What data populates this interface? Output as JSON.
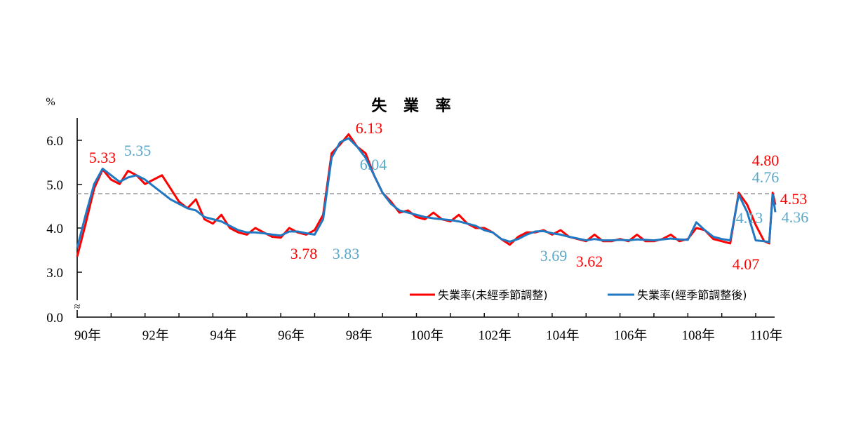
{
  "chart_data": {
    "type": "line",
    "title": "失 業 率",
    "ylabel": "%",
    "xlabel": "",
    "ylim": [
      0.0,
      6.5
    ],
    "y_axis_break": "≈ between 0.0 and 3.0",
    "yticks": [
      "0.0",
      "3.0",
      "4.0",
      "5.0",
      "6.0"
    ],
    "xticks": [
      "90年",
      "92年",
      "94年",
      "96年",
      "98年",
      "100年",
      "102年",
      "104年",
      "106年",
      "108年",
      "110年"
    ],
    "grid": false,
    "reference_line": {
      "value": 4.78,
      "style": "dashed",
      "color": "#8c8c8c"
    },
    "legend_position": "lower-right",
    "x": [
      90.0,
      90.25,
      90.5,
      90.75,
      91.0,
      91.25,
      91.5,
      91.75,
      92.0,
      92.25,
      92.5,
      92.75,
      93.0,
      93.25,
      93.5,
      93.75,
      94.0,
      94.25,
      94.5,
      94.75,
      95.0,
      95.25,
      95.5,
      95.75,
      96.0,
      96.25,
      96.5,
      96.75,
      97.0,
      97.25,
      97.5,
      97.75,
      98.0,
      98.25,
      98.5,
      98.75,
      99.0,
      99.25,
      99.5,
      99.75,
      100.0,
      100.25,
      100.5,
      100.75,
      101.0,
      101.25,
      101.5,
      101.75,
      102.0,
      102.25,
      102.5,
      102.75,
      103.0,
      103.25,
      103.5,
      103.75,
      104.0,
      104.25,
      104.5,
      104.75,
      105.0,
      105.25,
      105.5,
      105.75,
      106.0,
      106.25,
      106.5,
      106.75,
      107.0,
      107.25,
      107.5,
      107.75,
      108.0,
      108.25,
      108.5,
      108.75,
      109.0,
      109.25,
      109.5,
      109.75,
      110.0,
      110.25,
      110.4,
      110.5,
      110.58
    ],
    "series": [
      {
        "name": "失業率(未經季節調整)",
        "color": "#ff0000",
        "values": [
          3.35,
          4.1,
          4.9,
          5.33,
          5.1,
          5.0,
          5.3,
          5.2,
          5.0,
          5.1,
          5.2,
          4.9,
          4.6,
          4.45,
          4.65,
          4.2,
          4.1,
          4.3,
          4.0,
          3.9,
          3.85,
          4.0,
          3.9,
          3.8,
          3.78,
          4.0,
          3.9,
          3.85,
          3.95,
          4.3,
          5.7,
          5.9,
          6.13,
          5.85,
          5.7,
          5.2,
          4.8,
          4.6,
          4.35,
          4.4,
          4.25,
          4.2,
          4.35,
          4.2,
          4.15,
          4.3,
          4.1,
          4.0,
          4.0,
          3.9,
          3.75,
          3.62,
          3.8,
          3.9,
          3.9,
          3.95,
          3.85,
          3.95,
          3.8,
          3.75,
          3.7,
          3.85,
          3.7,
          3.7,
          3.75,
          3.7,
          3.85,
          3.7,
          3.7,
          3.75,
          3.85,
          3.7,
          3.75,
          4.0,
          3.95,
          3.75,
          3.7,
          3.65,
          4.8,
          4.53,
          4.07,
          3.7,
          3.65,
          4.8,
          4.53
        ]
      },
      {
        "name": "失業率(經季節調整後)",
        "color": "#1f78c1",
        "values": [
          3.55,
          4.3,
          5.0,
          5.35,
          5.2,
          5.05,
          5.15,
          5.2,
          5.1,
          4.95,
          4.8,
          4.65,
          4.55,
          4.45,
          4.4,
          4.25,
          4.2,
          4.15,
          4.05,
          3.95,
          3.9,
          3.9,
          3.88,
          3.85,
          3.83,
          3.92,
          3.92,
          3.88,
          3.85,
          4.2,
          5.6,
          5.95,
          6.04,
          5.85,
          5.6,
          5.2,
          4.8,
          4.55,
          4.4,
          4.35,
          4.3,
          4.25,
          4.22,
          4.2,
          4.18,
          4.15,
          4.1,
          4.05,
          3.95,
          3.9,
          3.75,
          3.69,
          3.75,
          3.85,
          3.92,
          3.93,
          3.88,
          3.85,
          3.8,
          3.76,
          3.72,
          3.75,
          3.72,
          3.72,
          3.73,
          3.72,
          3.74,
          3.73,
          3.72,
          3.74,
          3.76,
          3.74,
          3.73,
          4.13,
          3.95,
          3.8,
          3.75,
          3.72,
          4.76,
          4.36,
          3.72,
          3.7,
          3.68,
          4.76,
          4.36
        ]
      }
    ],
    "annotations": [
      {
        "text": "5.33",
        "series": "unadjusted",
        "color": "#ff0000"
      },
      {
        "text": "5.35",
        "series": "adjusted",
        "color": "#5aa8c8"
      },
      {
        "text": "6.13",
        "series": "unadjusted",
        "color": "#ff0000"
      },
      {
        "text": "6.04",
        "series": "adjusted",
        "color": "#5aa8c8"
      },
      {
        "text": "3.78",
        "series": "unadjusted",
        "color": "#ff0000"
      },
      {
        "text": "3.83",
        "series": "adjusted",
        "color": "#5aa8c8"
      },
      {
        "text": "3.69",
        "series": "adjusted",
        "color": "#5aa8c8"
      },
      {
        "text": "3.62",
        "series": "unadjusted",
        "color": "#ff0000"
      },
      {
        "text": "4.13",
        "series": "adjusted",
        "color": "#5aa8c8"
      },
      {
        "text": "4.07",
        "series": "unadjusted",
        "color": "#ff0000"
      },
      {
        "text": "4.80",
        "series": "unadjusted",
        "color": "#ff0000"
      },
      {
        "text": "4.76",
        "series": "adjusted",
        "color": "#5aa8c8"
      },
      {
        "text": "4.53",
        "series": "unadjusted",
        "color": "#ff0000"
      },
      {
        "text": "4.36",
        "series": "adjusted",
        "color": "#5aa8c8"
      }
    ]
  },
  "labels": {
    "title": "失 業 率",
    "unit": "%",
    "break_symbol": "≈",
    "legend": {
      "unadjusted": "失業率(未經季節調整)",
      "adjusted": "失業率(經季節調整後)"
    },
    "annotations": {
      "a533": "5.33",
      "a535": "5.35",
      "a613": "6.13",
      "a604": "6.04",
      "a378": "3.78",
      "a383": "3.83",
      "a369": "3.69",
      "a362": "3.62",
      "a413": "4.13",
      "a407": "4.07",
      "a480": "4.80",
      "a476": "4.76",
      "a453": "4.53",
      "a436": "4.36"
    }
  },
  "colors": {
    "unadjusted": "#ff0000",
    "adjusted": "#1f78c1",
    "adjusted_label": "#5aa8c8",
    "reference": "#8c8c8c",
    "axis": "#000000"
  }
}
